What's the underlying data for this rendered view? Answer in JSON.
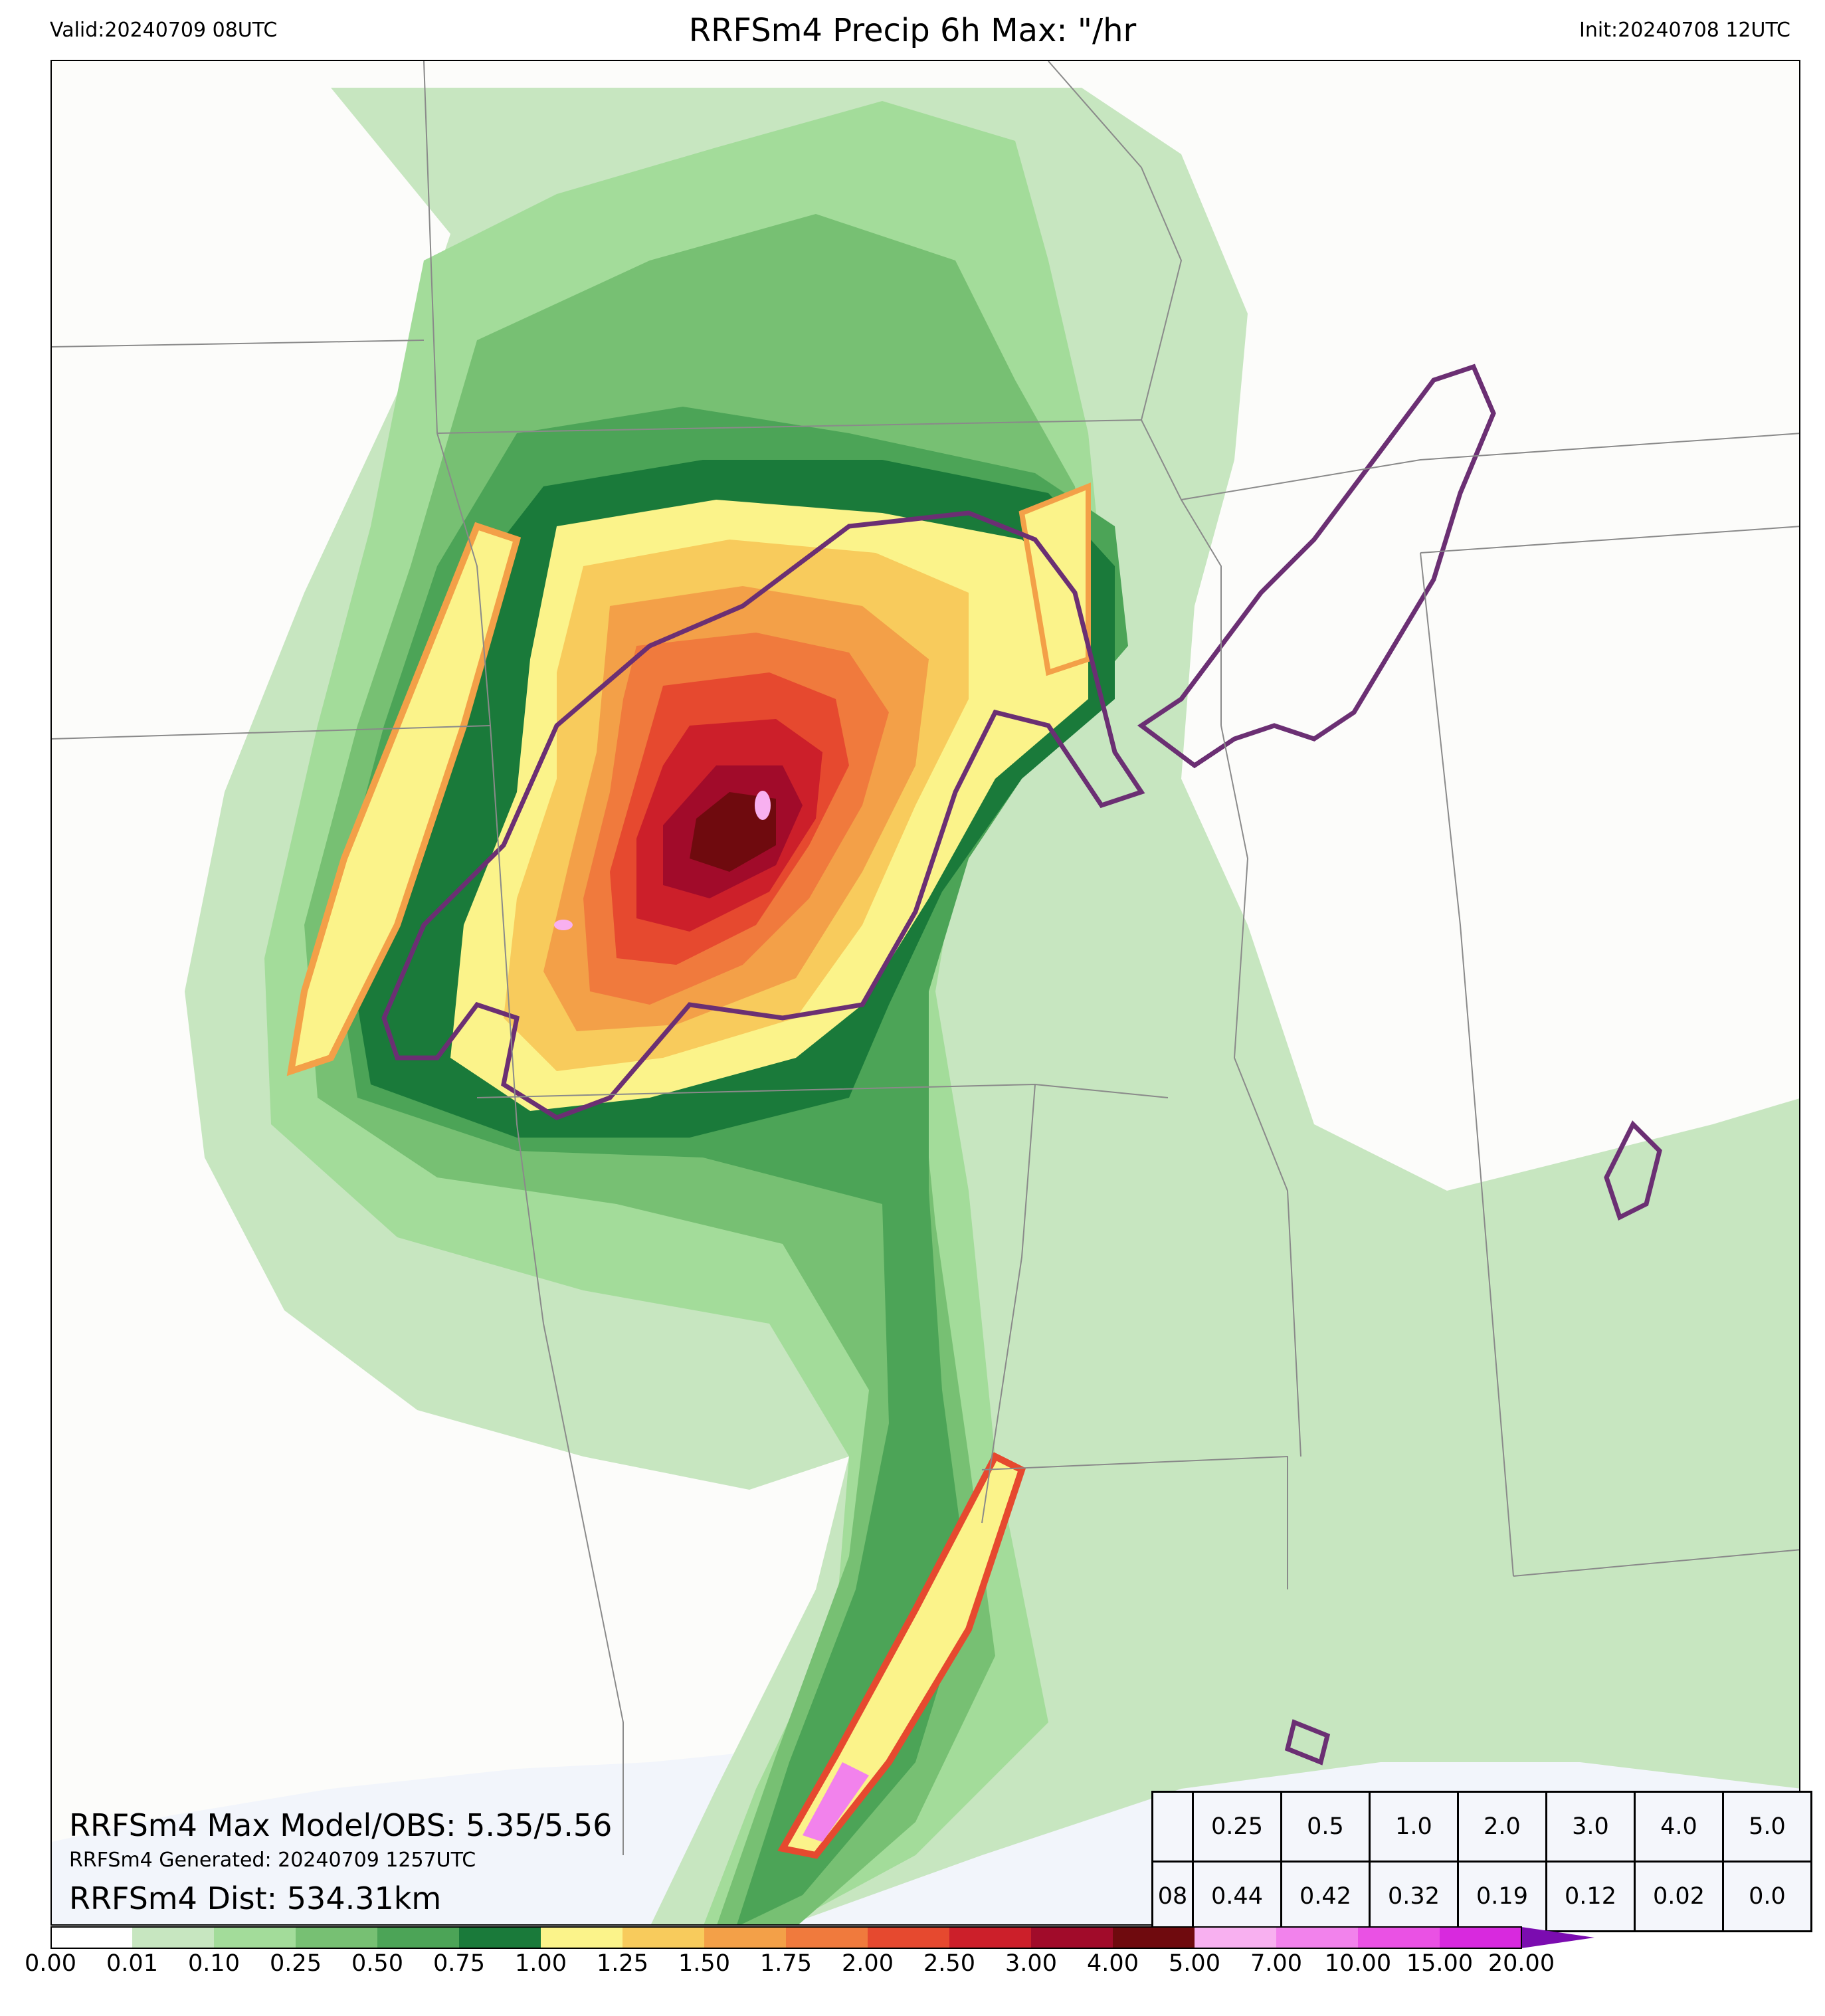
{
  "header": {
    "valid": "Valid:20240709 08UTC",
    "title": "RRFSm4 Precip 6h Max: \"/hr",
    "init": "Init:20240708 12UTC"
  },
  "annotations": {
    "max_model_obs": "RRFSm4 Max Model/OBS: 5.35/5.56",
    "generated": "RRFSm4 Generated: 20240709 1257UTC",
    "distance": "RRFSm4 Dist: 534.31km"
  },
  "stats_table": {
    "thresholds": [
      "0.25",
      "0.5",
      "1.0",
      "2.0",
      "3.0",
      "4.0",
      "5.0"
    ],
    "row_label": "08",
    "values": [
      "0.44",
      "0.42",
      "0.32",
      "0.19",
      "0.12",
      "0.02",
      "0.0"
    ]
  },
  "colorbar": {
    "ticks": [
      "0.00",
      "0.01",
      "0.10",
      "0.25",
      "0.50",
      "0.75",
      "1.00",
      "1.25",
      "1.50",
      "1.75",
      "2.00",
      "2.50",
      "3.00",
      "4.00",
      "5.00",
      "7.00",
      "10.00",
      "15.00",
      "20.00"
    ],
    "colors": [
      "#ffffff",
      "#c7e6c0",
      "#a3dc9a",
      "#77c073",
      "#4ca457",
      "#1a7a3a",
      "#fbf38a",
      "#f8cb5c",
      "#f3a048",
      "#f07a3d",
      "#e6492f",
      "#cc1f2a",
      "#a10b2a",
      "#6f0a0e",
      "#f8b0f0",
      "#f282ec",
      "#ea51e4",
      "#d829de",
      "#9d0fc6"
    ],
    "extend_color": "#7b0cb0"
  },
  "map_colors": {
    "background": "#fcfcfa",
    "water": "#f2f5fb",
    "contour": "#6b2f73",
    "borders": "#8a8a8a"
  }
}
